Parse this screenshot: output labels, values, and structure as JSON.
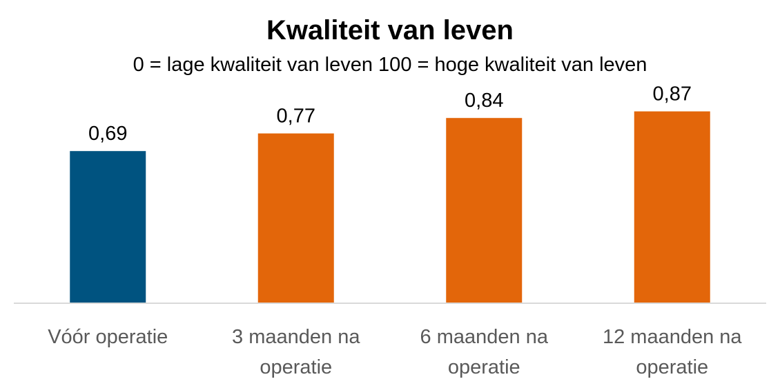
{
  "chart_data": {
    "type": "bar",
    "title": "Kwaliteit van leven",
    "subtitle": "0 = lage kwaliteit van leven  100 = hoge kwaliteit van leven",
    "categories": [
      [
        "Vóór operatie"
      ],
      [
        "3 maanden na",
        "operatie"
      ],
      [
        "6 maanden na",
        "operatie"
      ],
      [
        "12 maanden na",
        "operatie"
      ]
    ],
    "values": [
      0.69,
      0.77,
      0.84,
      0.87
    ],
    "value_labels": [
      "0,69",
      "0,77",
      "0,84",
      "0,87"
    ],
    "colors": [
      "#005380",
      "#E3660A",
      "#E3660A",
      "#E3660A"
    ],
    "axis_color": "#D9D9D9",
    "ylim": [
      0,
      1.0
    ],
    "grid": false,
    "legend": "none"
  }
}
